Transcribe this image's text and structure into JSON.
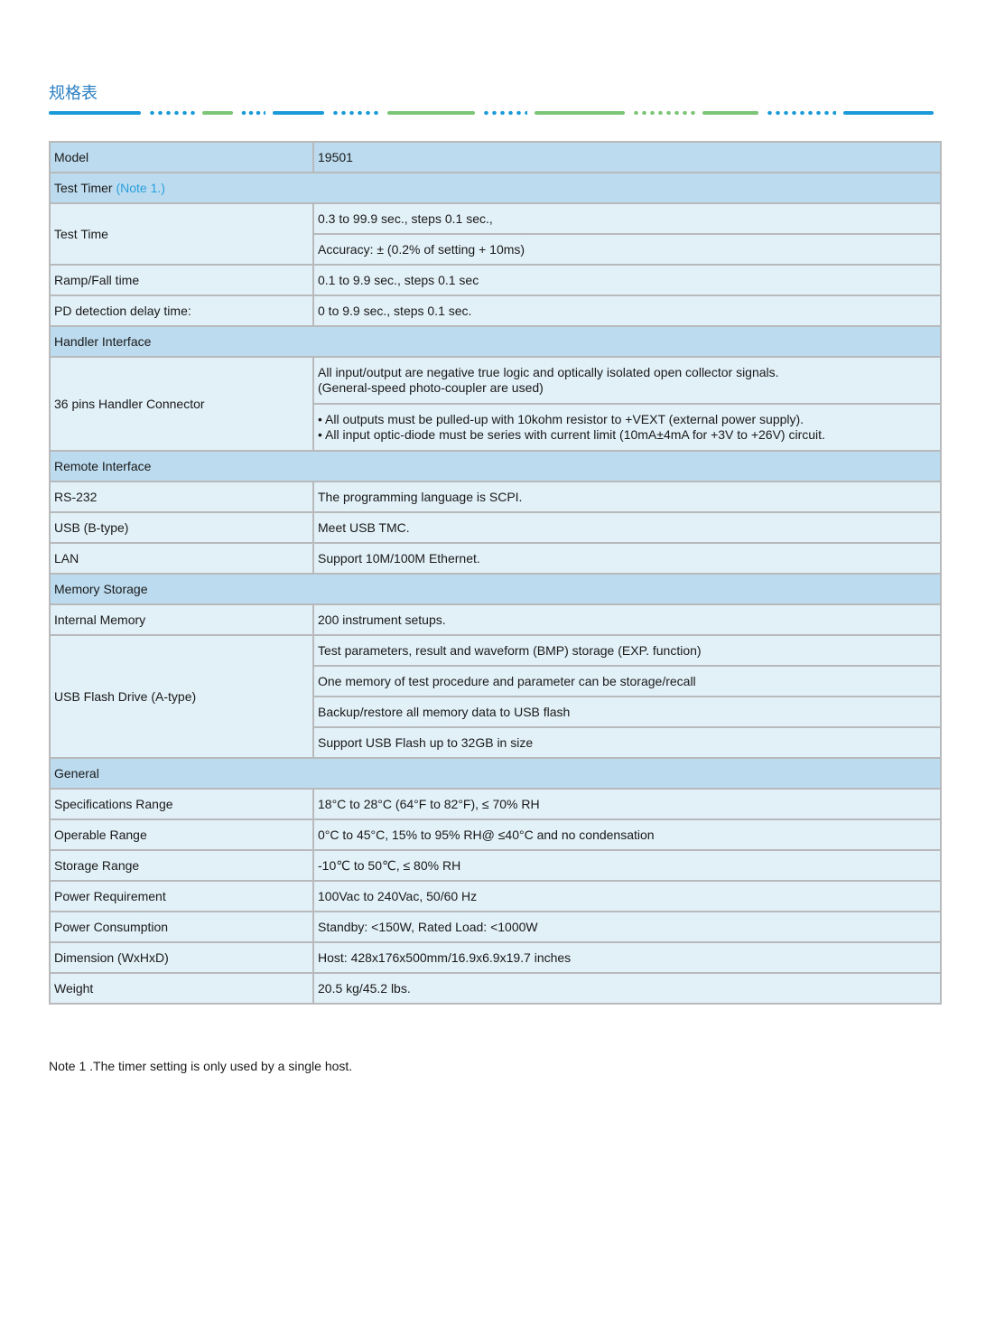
{
  "title": "规格表",
  "colors": {
    "title": "#2b7fc2",
    "section_bg": "#bcdbee",
    "row_bg": "#e2f0f7",
    "divider_blue": "#1a9ad9",
    "divider_green": "#7cc576",
    "note_link": "#2aa0df"
  },
  "model": {
    "label": "Model",
    "value": "19501"
  },
  "test_timer": {
    "label": "Test Timer",
    "note": "(Note 1.)",
    "test_time": {
      "label": "Test Time",
      "values": [
        "0.3 to 99.9 sec., steps 0.1 sec.,",
        "Accuracy: ± (0.2% of setting + 10ms)"
      ]
    },
    "ramp": {
      "label": "Ramp/Fall time",
      "value": "0.1 to 9.9 sec., steps 0.1 sec"
    },
    "pd": {
      "label": "PD detection delay time:",
      "value": "0 to 9.9 sec., steps 0.1 sec."
    }
  },
  "handler": {
    "label": "Handler Interface",
    "connector": {
      "label": "36 pins Handler Connector",
      "values": [
        [
          "All input/output are negative true logic and optically isolated open collector signals.",
          "(General-speed photo-coupler are used)"
        ],
        [
          "• All outputs must be pulled-up with 10kohm resistor to +VEXT (external power supply).",
          "• All input optic-diode must be series with current limit (10mA±4mA for +3V to +26V) circuit."
        ]
      ]
    }
  },
  "remote": {
    "label": "Remote Interface",
    "rows": [
      {
        "label": "RS-232",
        "value": "The programming language is SCPI."
      },
      {
        "label": "USB (B-type)",
        "value": "Meet USB TMC."
      },
      {
        "label": "LAN",
        "value": "Support 10M/100M Ethernet."
      }
    ]
  },
  "memory": {
    "label": "Memory Storage",
    "internal": {
      "label": "Internal Memory",
      "value": "200 instrument setups."
    },
    "usb": {
      "label": "USB Flash Drive (A-type)",
      "values": [
        "Test parameters, result and waveform (BMP) storage (EXP. function)",
        "One memory of test procedure and parameter can be storage/recall",
        "Backup/restore all memory data to USB flash",
        "Support USB Flash up to 32GB in size"
      ]
    }
  },
  "general": {
    "label": "General",
    "rows": [
      {
        "label": "Specifications Range",
        "value": "18°C to 28°C (64°F to 82°F), ≤ 70% RH"
      },
      {
        "label": "Operable Range",
        "value": "0°C to 45°C, 15% to 95% RH@ ≤40°C and no condensation"
      },
      {
        "label": "Storage Range",
        "value": "-10℃ to 50℃, ≤ 80% RH"
      },
      {
        "label": "Power Requirement",
        "value": "100Vac to 240Vac, 50/60 Hz"
      },
      {
        "label": "Power Consumption",
        "value": "Standby: <150W, Rated Load: <1000W"
      },
      {
        "label": "Dimension (WxHxD)",
        "value": "Host: 428x176x500mm/16.9x6.9x19.7 inches"
      },
      {
        "label": "Weight",
        "value": "20.5 kg/45.2 lbs."
      }
    ]
  },
  "footnote": "Note 1 .The timer setting is only used by a single host."
}
